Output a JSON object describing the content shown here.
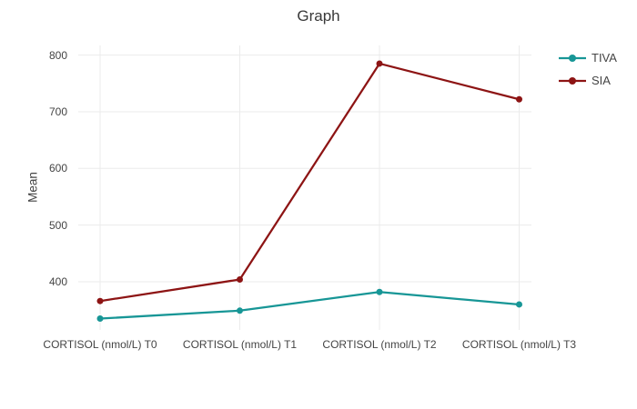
{
  "chart_data": {
    "type": "line",
    "title": "Graph",
    "ylabel": "Mean",
    "xlabel": "",
    "categories": [
      "CORTISOL (nmol/L) T0",
      "CORTISOL (nmol/L) T1",
      "CORTISOL (nmol/L) T2",
      "CORTISOL (nmol/L) T3"
    ],
    "series": [
      {
        "name": "TIVA",
        "color": "#179696",
        "values": [
          335,
          349,
          382,
          360
        ]
      },
      {
        "name": "SIA",
        "color": "#8d1414",
        "values": [
          366,
          404,
          785,
          722
        ]
      }
    ],
    "yticks": [
      400,
      500,
      600,
      700,
      800
    ],
    "ylim": [
      315,
      817
    ],
    "grid": true,
    "grid_color": "#ebebeb",
    "tick_color": "#444444",
    "legend_position": "right-top",
    "marker": "circle",
    "background": "#ffffff"
  }
}
